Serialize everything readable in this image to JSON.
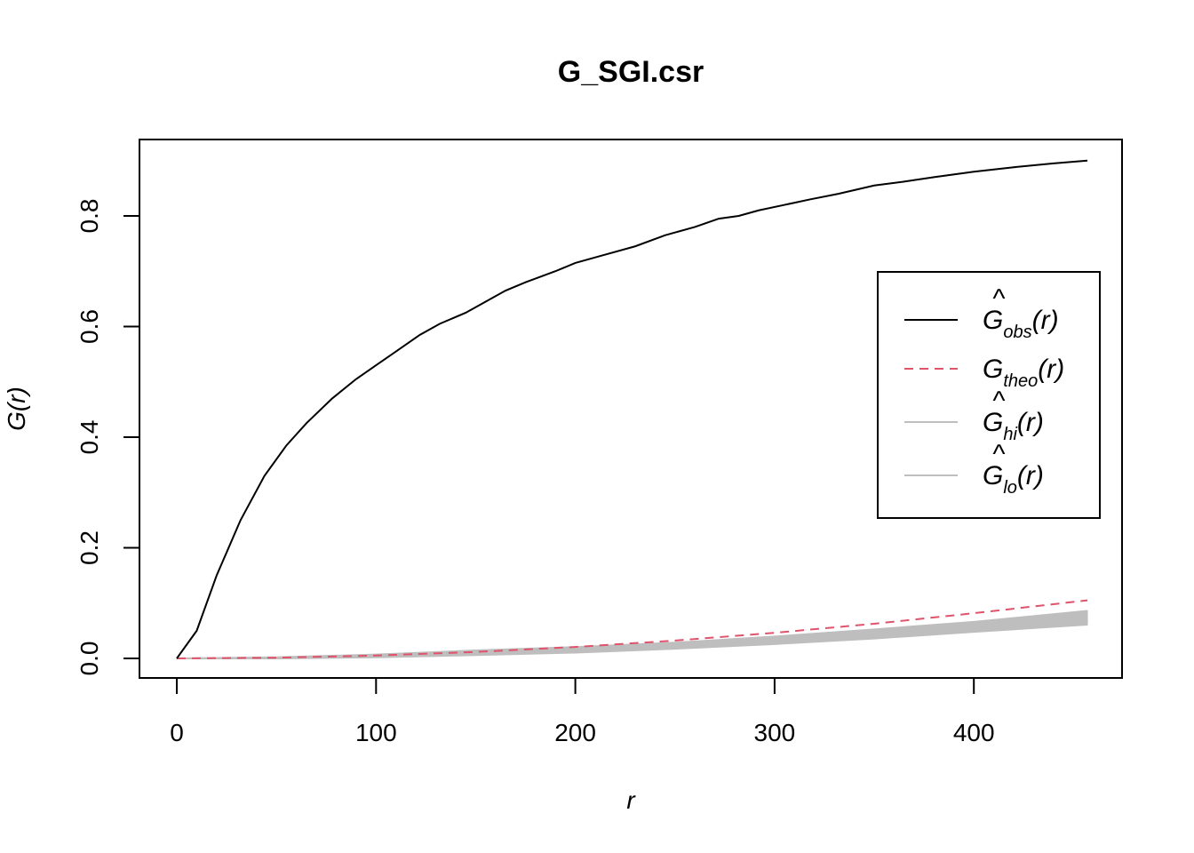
{
  "chart_data": {
    "type": "line",
    "title": "G_SGI.csr",
    "xlabel": "r",
    "ylabel": "G(r)",
    "xlim": [
      0,
      460
    ],
    "ylim": [
      0,
      0.9
    ],
    "x_ticks": [
      0,
      100,
      200,
      300,
      400
    ],
    "x_tick_labels": [
      "0",
      "100",
      "200",
      "300",
      "400"
    ],
    "y_ticks": [
      0,
      0.2,
      0.4,
      0.6,
      0.8
    ],
    "y_tick_labels": [
      "0.0",
      "0.2",
      "0.4",
      "0.6",
      "0.8"
    ],
    "grid": false,
    "legend": {
      "position": "right",
      "entries": [
        {
          "main": "G",
          "hat": true,
          "sub": "obs",
          "suffix": "(r)",
          "color": "#000000",
          "dash": "solid",
          "width": 2
        },
        {
          "main": "G",
          "hat": false,
          "sub": "theo",
          "suffix": "(r)",
          "color": "#DF536B",
          "dash": "dashed",
          "width": 2
        },
        {
          "main": "G",
          "hat": true,
          "sub": "hi",
          "suffix": "(r)",
          "color": "#BEBEBE",
          "dash": "solid",
          "width": 2
        },
        {
          "main": "G",
          "hat": true,
          "sub": "lo",
          "suffix": "(r)",
          "color": "#BEBEBE",
          "dash": "solid",
          "width": 2
        }
      ]
    },
    "series": [
      {
        "id": "obs",
        "color": "#000000",
        "x": [
          0,
          10,
          20,
          32,
          44,
          55,
          65,
          78,
          90,
          100,
          110,
          122,
          132,
          145,
          155,
          165,
          175,
          190,
          200,
          215,
          230,
          245,
          260,
          272,
          282,
          292,
          305,
          318,
          332,
          350,
          365,
          380,
          400,
          420,
          440,
          457
        ],
        "y": [
          0,
          0.05,
          0.15,
          0.25,
          0.33,
          0.385,
          0.425,
          0.47,
          0.505,
          0.53,
          0.555,
          0.585,
          0.605,
          0.625,
          0.645,
          0.665,
          0.68,
          0.7,
          0.715,
          0.73,
          0.745,
          0.765,
          0.78,
          0.795,
          0.8,
          0.81,
          0.82,
          0.83,
          0.84,
          0.855,
          0.862,
          0.87,
          0.88,
          0.888,
          0.895,
          0.9
        ]
      },
      {
        "id": "theo",
        "color": "#DF536B",
        "x": [
          0,
          50,
          100,
          150,
          200,
          250,
          300,
          350,
          400,
          457
        ],
        "y": [
          0,
          0.0013,
          0.0052,
          0.0117,
          0.0207,
          0.0323,
          0.0463,
          0.0627,
          0.0817,
          0.105
        ]
      },
      {
        "id": "hi",
        "color": "#BEBEBE",
        "x": [
          0,
          50,
          100,
          150,
          200,
          250,
          300,
          350,
          400,
          457
        ],
        "y": [
          0,
          0.002,
          0.007,
          0.0145,
          0.0205,
          0.0285,
          0.0395,
          0.0525,
          0.066,
          0.086
        ]
      },
      {
        "id": "lo",
        "color": "#BEBEBE",
        "x": [
          0,
          50,
          100,
          150,
          200,
          250,
          300,
          350,
          400,
          457
        ],
        "y": [
          0,
          0.0,
          0.002,
          0.006,
          0.0105,
          0.0175,
          0.026,
          0.036,
          0.048,
          0.061
        ]
      }
    ]
  }
}
